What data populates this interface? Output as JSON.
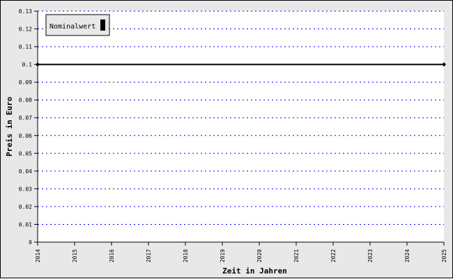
{
  "chart_data": {
    "type": "line",
    "title": "",
    "xlabel": "Zeit in Jahren",
    "ylabel": "Preis in Euro",
    "xlim": [
      2014,
      2025
    ],
    "ylim": [
      0,
      0.13
    ],
    "x_ticks": [
      "2014",
      "2015",
      "2016",
      "2017",
      "2018",
      "2019",
      "2020",
      "2021",
      "2022",
      "2023",
      "2024",
      "2025"
    ],
    "y_ticks": [
      "0",
      "0.01",
      "0.02",
      "0.03",
      "0.04",
      "0.05",
      "0.06",
      "0.07",
      "0.08",
      "0.09",
      "0.1",
      "0.11",
      "0.12",
      "0.13"
    ],
    "grid": true,
    "grid_color": "#0000ff",
    "legend_placement": "top-left",
    "series": [
      {
        "name": "Nominalwert",
        "color": "#000000",
        "x": [
          2014,
          2025
        ],
        "y": [
          0.1,
          0.1
        ]
      }
    ]
  }
}
